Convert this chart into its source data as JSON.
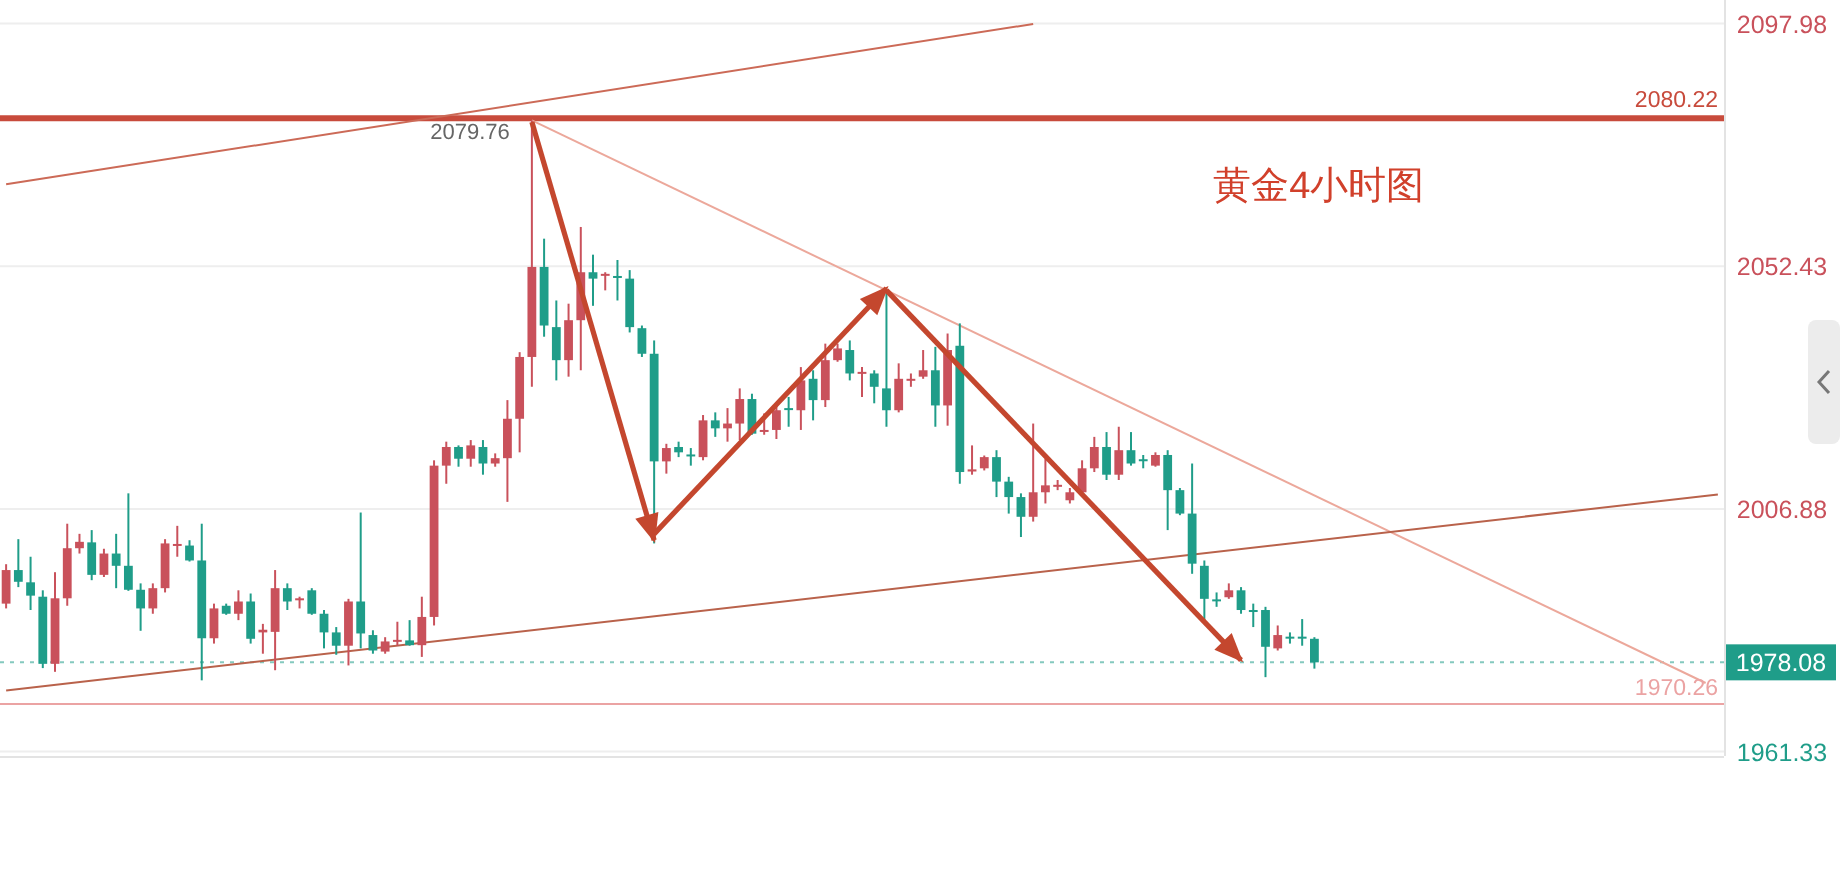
{
  "chart_data": {
    "type": "candlestick",
    "title": "黄金4小时图",
    "categories": [
      null,
      null,
      null,
      null,
      null,
      null,
      null,
      null,
      null,
      null,
      null,
      null,
      null,
      null,
      null,
      null,
      null,
      null,
      null,
      null,
      null,
      null,
      null,
      null,
      null,
      null,
      null,
      null,
      null,
      null,
      null,
      null,
      null,
      null,
      null,
      null,
      null,
      null,
      null,
      null,
      null,
      null,
      null,
      null,
      null,
      null,
      null,
      null,
      null,
      null,
      null,
      null,
      null,
      null,
      null,
      null,
      null,
      null,
      null,
      null,
      null,
      null,
      null,
      null,
      null,
      null,
      null,
      null,
      null,
      null,
      null,
      null,
      null,
      null,
      null,
      null,
      null,
      null,
      null,
      null,
      null,
      null,
      null,
      null,
      null,
      null,
      null,
      null,
      null,
      null,
      null,
      null,
      null,
      null,
      null,
      null,
      null,
      null,
      null,
      null,
      null,
      null,
      null,
      null,
      null,
      null,
      null,
      null,
      null,
      null,
      null,
      null,
      null,
      null,
      null,
      null,
      null,
      null,
      null,
      null,
      null,
      null,
      null,
      null,
      null,
      null,
      null,
      null,
      null,
      null,
      null,
      null,
      null,
      null,
      null,
      null,
      null,
      null,
      null,
      null,
      null
    ],
    "ohlc": [
      [
        1989.1,
        1996.5,
        1988.2,
        1995.4
      ],
      [
        1995.4,
        2001.2,
        1992.2,
        1993.2
      ],
      [
        1993.1,
        1997.9,
        1987.9,
        1990.6
      ],
      [
        1990.4,
        1991.6,
        1977.0,
        1977.8
      ],
      [
        1977.8,
        1995.0,
        1976.3,
        1990.1
      ],
      [
        1990.1,
        2004.1,
        1988.7,
        1999.5
      ],
      [
        1999.5,
        2002.2,
        1998.5,
        2000.7
      ],
      [
        2000.6,
        2002.9,
        1993.5,
        1994.5
      ],
      [
        1994.5,
        1999.4,
        1994.1,
        1998.5
      ],
      [
        1998.5,
        2002.2,
        1992.0,
        1996.2
      ],
      [
        1996.2,
        2009.8,
        1991.5,
        1991.7
      ],
      [
        1991.7,
        1992.9,
        1984.0,
        1988.2
      ],
      [
        1988.2,
        1992.9,
        1987.2,
        1992.0
      ],
      [
        1992.0,
        2001.2,
        1991.2,
        2000.4
      ],
      [
        2000.1,
        2003.7,
        1997.9,
        2000.3
      ],
      [
        2000.0,
        2001.0,
        1997.0,
        1997.2
      ],
      [
        1997.2,
        2004.1,
        1974.7,
        1982.6
      ],
      [
        1982.6,
        1989.1,
        1981.6,
        1988.2
      ],
      [
        1988.7,
        1989.1,
        1987.0,
        1987.2
      ],
      [
        1987.2,
        1991.6,
        1986.0,
        1989.5
      ],
      [
        1989.5,
        1991.0,
        1981.6,
        1982.5
      ],
      [
        1983.7,
        1985.3,
        1979.7,
        1984.2
      ],
      [
        1983.8,
        1995.4,
        1976.6,
        1992.0
      ],
      [
        1992.0,
        1992.9,
        1987.9,
        1989.5
      ],
      [
        1989.8,
        1990.4,
        1988.2,
        1990.1
      ],
      [
        1991.6,
        1992.0,
        1987.0,
        1987.2
      ],
      [
        1987.2,
        1987.9,
        1980.7,
        1983.7
      ],
      [
        1983.7,
        1984.7,
        1979.5,
        1981.2
      ],
      [
        1981.2,
        1990.0,
        1977.5,
        1989.5
      ],
      [
        1989.5,
        2006.2,
        1980.7,
        1983.5
      ],
      [
        1983.2,
        1984.1,
        1979.7,
        1980.3
      ],
      [
        1980.1,
        1982.8,
        1979.7,
        1982.0
      ],
      [
        1982.1,
        1985.7,
        1981.2,
        1982.3
      ],
      [
        1982.2,
        1986.0,
        1981.2,
        1981.3
      ],
      [
        1981.3,
        1990.4,
        1979.1,
        1986.6
      ],
      [
        1986.6,
        2016.0,
        1985.0,
        2015.0
      ],
      [
        2015.0,
        2019.5,
        2011.6,
        2018.5
      ],
      [
        2018.5,
        2018.8,
        2014.8,
        2016.3
      ],
      [
        2016.3,
        2019.8,
        2014.8,
        2018.8
      ],
      [
        2018.5,
        2019.8,
        2013.3,
        2015.4
      ],
      [
        2015.4,
        2017.3,
        2014.8,
        2016.4
      ],
      [
        2016.4,
        2027.3,
        2008.2,
        2023.8
      ],
      [
        2023.8,
        2036.3,
        2017.5,
        2035.4
      ],
      [
        2035.4,
        2079.76,
        2029.8,
        2052.3
      ],
      [
        2052.3,
        2057.6,
        2039.2,
        2041.3
      ],
      [
        2041.0,
        2046.0,
        2031.0,
        2034.8
      ],
      [
        2034.8,
        2045.4,
        2031.7,
        2042.3
      ],
      [
        2042.3,
        2059.8,
        2032.9,
        2051.3
      ],
      [
        2051.3,
        2054.6,
        2045.0,
        2050.1
      ],
      [
        2050.7,
        2051.3,
        2047.9,
        2051.0
      ],
      [
        2050.6,
        2053.6,
        2046.0,
        2050.4
      ],
      [
        2050.1,
        2051.7,
        2040.0,
        2041.0
      ],
      [
        2040.8,
        2041.3,
        2035.4,
        2036.0
      ],
      [
        2036.0,
        2038.5,
        2000.4,
        2015.8
      ],
      [
        2015.8,
        2019.1,
        2013.5,
        2018.3
      ],
      [
        2018.5,
        2019.5,
        2016.6,
        2017.5
      ],
      [
        2017.1,
        2018.3,
        2015.0,
        2016.8
      ],
      [
        2016.6,
        2024.5,
        2016.0,
        2023.5
      ],
      [
        2023.5,
        2025.0,
        2020.4,
        2022.0
      ],
      [
        2022.0,
        2025.8,
        2019.5,
        2022.9
      ],
      [
        2022.9,
        2029.5,
        2019.8,
        2027.5
      ],
      [
        2027.5,
        2028.5,
        2020.8,
        2021.0
      ],
      [
        2021.4,
        2024.8,
        2020.8,
        2021.7
      ],
      [
        2021.7,
        2026.3,
        2020.0,
        2025.4
      ],
      [
        2025.8,
        2027.9,
        2022.3,
        2025.6
      ],
      [
        2025.4,
        2033.5,
        2021.7,
        2031.0
      ],
      [
        2031.3,
        2032.9,
        2023.5,
        2027.3
      ],
      [
        2027.3,
        2037.9,
        2026.0,
        2034.8
      ],
      [
        2034.8,
        2037.9,
        2034.5,
        2037.0
      ],
      [
        2036.7,
        2038.5,
        2031.0,
        2032.3
      ],
      [
        2032.4,
        2033.5,
        2027.9,
        2032.6
      ],
      [
        2032.3,
        2032.9,
        2026.7,
        2029.8
      ],
      [
        2029.5,
        2047.9,
        2022.3,
        2025.4
      ],
      [
        2025.4,
        2034.2,
        2025.0,
        2031.3
      ],
      [
        2031.0,
        2032.3,
        2029.8,
        2031.3
      ],
      [
        2031.7,
        2036.7,
        2031.3,
        2032.9
      ],
      [
        2032.9,
        2037.3,
        2022.3,
        2026.3
      ],
      [
        2026.3,
        2039.8,
        2022.5,
        2036.7
      ],
      [
        2037.5,
        2041.7,
        2011.6,
        2013.8
      ],
      [
        2013.9,
        2018.8,
        2013.3,
        2014.3
      ],
      [
        2014.5,
        2016.9,
        2014.1,
        2016.6
      ],
      [
        2016.6,
        2017.9,
        2009.1,
        2012.0
      ],
      [
        2012.0,
        2012.9,
        2006.0,
        2009.1
      ],
      [
        2009.1,
        2009.8,
        2001.6,
        2005.4
      ],
      [
        2005.4,
        2022.9,
        2004.5,
        2010.0
      ],
      [
        2010.0,
        2016.3,
        2007.9,
        2011.3
      ],
      [
        2011.2,
        2012.3,
        2010.4,
        2011.4
      ],
      [
        2008.5,
        2010.8,
        2007.9,
        2010.0
      ],
      [
        2010.0,
        2016.0,
        2009.8,
        2014.5
      ],
      [
        2014.5,
        2020.4,
        2013.8,
        2018.5
      ],
      [
        2018.5,
        2021.3,
        2012.3,
        2013.3
      ],
      [
        2013.3,
        2022.3,
        2012.3,
        2017.9
      ],
      [
        2017.9,
        2021.3,
        2015.0,
        2015.4
      ],
      [
        2016.2,
        2017.0,
        2014.5,
        2016.0
      ],
      [
        2015.0,
        2017.5,
        2014.8,
        2017.0
      ],
      [
        2017.0,
        2017.9,
        2002.9,
        2010.4
      ],
      [
        2010.4,
        2010.8,
        2005.7,
        2006.0
      ],
      [
        2006.0,
        2015.4,
        1994.7,
        1996.6
      ],
      [
        1996.2,
        1997.2,
        1986.0,
        1990.0
      ],
      [
        1989.9,
        1991.2,
        1988.5,
        1989.7
      ],
      [
        1990.3,
        1992.9,
        1990.0,
        1991.6
      ],
      [
        1991.6,
        1992.2,
        1987.2,
        1987.9
      ],
      [
        1987.9,
        1989.1,
        1984.7,
        1987.6
      ],
      [
        1987.9,
        1988.5,
        1975.3,
        1981.0
      ],
      [
        1980.7,
        1985.0,
        1980.3,
        1983.2
      ],
      [
        1982.9,
        1983.7,
        1981.6,
        1982.7
      ],
      [
        1982.9,
        1986.2,
        1981.2,
        1982.6
      ],
      [
        1982.5,
        1982.8,
        1976.9,
        1978.08
      ],
      null,
      null,
      null,
      null,
      null,
      null,
      null,
      null,
      null,
      null,
      null,
      null,
      null,
      null,
      null,
      null,
      null,
      null,
      null,
      null,
      null,
      null,
      null,
      null,
      null,
      null,
      null,
      null,
      null,
      null,
      null,
      null,
      null
    ],
    "colors": [
      "#c9515b",
      "#1f9d89",
      "#1f9d89",
      "#1f9d89",
      "#c9515b",
      "#c9515b",
      "#c9515b",
      "#1f9d89",
      "#c9515b",
      "#1f9d89",
      "#1f9d89",
      "#1f9d89",
      "#c9515b",
      "#c9515b",
      "#c9515b",
      "#1f9d89",
      "#1f9d89",
      "#c9515b",
      "#1f9d89",
      "#c9515b",
      "#1f9d89",
      "#c9515b",
      "#c9515b",
      "#1f9d89",
      "#c9515b",
      "#1f9d89",
      "#1f9d89",
      "#1f9d89",
      "#c9515b",
      "#1f9d89",
      "#1f9d89",
      "#c9515b",
      "#c9515b",
      "#1f9d89",
      "#c9515b",
      "#c9515b",
      "#c9515b",
      "#1f9d89",
      "#c9515b",
      "#1f9d89",
      "#c9515b",
      "#c9515b",
      "#c9515b",
      "#c9515b",
      "#1f9d89",
      "#1f9d89",
      "#c9515b",
      "#c9515b",
      "#1f9d89",
      "#c9515b",
      "#1f9d89",
      "#1f9d89",
      "#1f9d89",
      "#1f9d89",
      "#c9515b",
      "#1f9d89",
      "#1f9d89",
      "#c9515b",
      "#1f9d89",
      "#c9515b",
      "#c9515b",
      "#1f9d89",
      "#c9515b",
      "#c9515b",
      "#1f9d89",
      "#c9515b",
      "#1f9d89",
      "#c9515b",
      "#c9515b",
      "#1f9d89",
      "#c9515b",
      "#1f9d89",
      "#1f9d89",
      "#c9515b",
      "#c9515b",
      "#c9515b",
      "#1f9d89",
      "#c9515b",
      "#1f9d89",
      "#c9515b",
      "#c9515b",
      "#1f9d89",
      "#1f9d89",
      "#1f9d89",
      "#c9515b",
      "#c9515b",
      "#c9515b",
      "#c9515b",
      "#c9515b",
      "#c9515b",
      "#1f9d89",
      "#c9515b",
      "#1f9d89",
      "#1f9d89",
      "#c9515b",
      "#1f9d89",
      "#1f9d89",
      "#1f9d89",
      "#1f9d89",
      "#1f9d89",
      "#c9515b",
      "#1f9d89",
      "#1f9d89",
      "#1f9d89",
      "#c9515b",
      "#1f9d89",
      "#1f9d89",
      "#1f9d89",
      null,
      null,
      null,
      null,
      null,
      null,
      null,
      null,
      null,
      null,
      null,
      null,
      null,
      null,
      null,
      null,
      null,
      null,
      null,
      null,
      null,
      null,
      null,
      null,
      null,
      null,
      null,
      null,
      null,
      null,
      null,
      null,
      null
    ],
    "ylim": [
      1960.5,
      2102.4
    ],
    "yticks": [
      1961.33,
      2006.88,
      2052.43,
      2097.98
    ],
    "tick_labels": "y",
    "grid": "y",
    "ref_lines": [
      {
        "axis": "y",
        "value": 2080.22,
        "label": "2080.22",
        "color": "#c84b3c"
      },
      {
        "axis": "y",
        "value": 1978.08,
        "label": "1978.08",
        "color": "#1f9d89",
        "line_style": "dotted"
      },
      {
        "axis": "y",
        "value": 1970.26,
        "label": "1970.26",
        "color": "#eba3a3"
      }
    ],
    "annotations": [
      {
        "text": "2079.76",
        "y": 2079.76
      }
    ],
    "series": [
      {
        "type": "line",
        "color": "#cc6a57",
        "values": [
          2067.8,
          null,
          null,
          null,
          null,
          null,
          null,
          null,
          null,
          null,
          null,
          null,
          null,
          null,
          null,
          null,
          null,
          null,
          null,
          null,
          null,
          null,
          null,
          null,
          null,
          null,
          null,
          null,
          null,
          null,
          null,
          null,
          null,
          null,
          null,
          null,
          null,
          null,
          null,
          null,
          null,
          null,
          null,
          null,
          null,
          null,
          null,
          null,
          null,
          null,
          null,
          null,
          null,
          null,
          null,
          null,
          null,
          null,
          null,
          null,
          null,
          null,
          null,
          null,
          null,
          null,
          null,
          null,
          null,
          null,
          null,
          null,
          null,
          null,
          null,
          null,
          null,
          null,
          null,
          null,
          null,
          null,
          null,
          null,
          2097.9,
          null,
          null,
          null,
          null,
          null,
          null,
          null,
          null,
          null,
          null,
          null,
          null,
          null,
          null,
          null,
          null,
          null,
          null,
          null,
          null,
          null,
          null,
          null,
          null,
          null,
          null,
          null,
          null,
          null,
          null,
          null,
          null,
          null,
          null,
          null,
          null,
          null,
          null,
          null,
          null,
          null,
          null,
          null,
          null,
          null,
          null,
          null,
          null,
          null,
          null,
          null,
          null,
          null,
          null,
          null,
          null
        ]
      },
      {
        "type": "line",
        "color": "#eca89b",
        "values": [
          null,
          null,
          null,
          null,
          null,
          null,
          null,
          null,
          null,
          null,
          null,
          null,
          null,
          null,
          null,
          null,
          null,
          null,
          null,
          null,
          null,
          null,
          null,
          null,
          null,
          null,
          null,
          null,
          null,
          null,
          null,
          null,
          null,
          null,
          null,
          null,
          null,
          null,
          null,
          null,
          null,
          null,
          null,
          2079.8,
          null,
          null,
          null,
          null,
          null,
          null,
          null,
          null,
          null,
          null,
          null,
          null,
          null,
          null,
          null,
          null,
          null,
          null,
          null,
          null,
          null,
          null,
          null,
          null,
          null,
          null,
          null,
          null,
          null,
          null,
          null,
          null,
          null,
          null,
          null,
          null,
          null,
          null,
          null,
          null,
          null,
          null,
          null,
          null,
          null,
          null,
          null,
          null,
          null,
          null,
          null,
          null,
          null,
          null,
          null,
          null,
          null,
          null,
          null,
          null,
          null,
          null,
          null,
          null,
          null,
          null,
          null,
          null,
          null,
          null,
          null,
          null,
          null,
          null,
          null,
          null,
          null,
          null,
          null,
          null,
          null,
          null,
          null,
          null,
          null,
          null,
          null,
          null,
          null,
          null,
          null,
          null,
          null,
          null,
          null,
          1974.2,
          null
        ]
      },
      {
        "type": "line",
        "color": "#b9624b",
        "values": [
          1972.8,
          null,
          null,
          null,
          null,
          null,
          null,
          null,
          null,
          null,
          null,
          null,
          null,
          null,
          null,
          null,
          null,
          null,
          null,
          null,
          null,
          null,
          null,
          null,
          null,
          null,
          null,
          null,
          null,
          null,
          null,
          null,
          null,
          null,
          null,
          null,
          null,
          null,
          null,
          null,
          null,
          null,
          null,
          null,
          null,
          null,
          null,
          null,
          null,
          null,
          null,
          null,
          null,
          null,
          null,
          null,
          null,
          null,
          null,
          null,
          null,
          null,
          null,
          null,
          null,
          null,
          null,
          null,
          null,
          null,
          null,
          null,
          null,
          null,
          null,
          null,
          null,
          null,
          null,
          null,
          null,
          null,
          null,
          null,
          null,
          null,
          null,
          null,
          null,
          null,
          null,
          null,
          null,
          null,
          null,
          null,
          null,
          null,
          null,
          null,
          null,
          null,
          null,
          null,
          null,
          null,
          null,
          null,
          null,
          null,
          null,
          null,
          null,
          null,
          null,
          null,
          null,
          null,
          null,
          null,
          null,
          null,
          null,
          null,
          null,
          null,
          null,
          null,
          null,
          null,
          null,
          null,
          null,
          null,
          null,
          null,
          null,
          null,
          null,
          null,
          2009.6
        ]
      },
      {
        "type": "line",
        "color": "#c4472e",
        "values": [
          null,
          null,
          null,
          null,
          null,
          null,
          null,
          null,
          null,
          null,
          null,
          null,
          null,
          null,
          null,
          null,
          null,
          null,
          null,
          null,
          null,
          null,
          null,
          null,
          null,
          null,
          null,
          null,
          null,
          null,
          null,
          null,
          null,
          null,
          null,
          null,
          null,
          null,
          null,
          null,
          null,
          null,
          null,
          2079.5,
          null,
          null,
          null,
          null,
          null,
          null,
          null,
          null,
          null,
          2001.0,
          null,
          null,
          null,
          null,
          null,
          null,
          null,
          null,
          null,
          null,
          null,
          null,
          null,
          null,
          null,
          null,
          null,
          null,
          null,
          null,
          null,
          null,
          null,
          null,
          null,
          null,
          null,
          null,
          null,
          null,
          null,
          null,
          null,
          null,
          null,
          null,
          null,
          null,
          null,
          null,
          null,
          null,
          null,
          null,
          null,
          null,
          null,
          null,
          null,
          null,
          null,
          null,
          null,
          null,
          null,
          null,
          null,
          null,
          null,
          null,
          null,
          null,
          null,
          null,
          null,
          null,
          null,
          null,
          null,
          null,
          null,
          null,
          null,
          null,
          null,
          null,
          null,
          null,
          null,
          null,
          null,
          null,
          null,
          null,
          null,
          null,
          null
        ]
      },
      {
        "type": "line",
        "color": "#c4472e",
        "values": [
          null,
          null,
          null,
          null,
          null,
          null,
          null,
          null,
          null,
          null,
          null,
          null,
          null,
          null,
          null,
          null,
          null,
          null,
          null,
          null,
          null,
          null,
          null,
          null,
          null,
          null,
          null,
          null,
          null,
          null,
          null,
          null,
          null,
          null,
          null,
          null,
          null,
          null,
          null,
          null,
          null,
          null,
          null,
          null,
          null,
          null,
          null,
          null,
          null,
          null,
          null,
          null,
          null,
          2002.2,
          null,
          null,
          null,
          null,
          null,
          null,
          null,
          null,
          null,
          null,
          null,
          null,
          null,
          null,
          null,
          null,
          null,
          null,
          2048.3,
          null,
          null,
          null,
          null,
          null,
          null,
          null,
          null,
          null,
          null,
          null,
          null,
          null,
          null,
          null,
          null,
          null,
          null,
          null,
          null,
          null,
          null,
          null,
          null,
          null,
          null,
          null,
          null,
          null,
          null,
          null,
          null,
          null,
          null,
          null,
          null,
          null,
          null,
          null,
          null,
          null,
          null,
          null,
          null,
          null,
          null,
          null,
          null,
          null,
          null,
          null,
          null,
          null,
          null,
          null,
          null,
          null,
          null,
          null,
          null,
          null,
          null,
          null,
          null,
          null,
          null,
          null,
          null
        ]
      },
      {
        "type": "line",
        "color": "#c4472e",
        "values": [
          null,
          null,
          null,
          null,
          null,
          null,
          null,
          null,
          null,
          null,
          null,
          null,
          null,
          null,
          null,
          null,
          null,
          null,
          null,
          null,
          null,
          null,
          null,
          null,
          null,
          null,
          null,
          null,
          null,
          null,
          null,
          null,
          null,
          null,
          null,
          null,
          null,
          null,
          null,
          null,
          null,
          null,
          null,
          null,
          null,
          null,
          null,
          null,
          null,
          null,
          null,
          null,
          null,
          null,
          null,
          null,
          null,
          null,
          null,
          null,
          null,
          null,
          null,
          null,
          null,
          null,
          null,
          null,
          null,
          null,
          null,
          null,
          2047.9,
          null,
          null,
          null,
          null,
          null,
          null,
          null,
          null,
          null,
          null,
          null,
          null,
          null,
          null,
          null,
          null,
          null,
          null,
          null,
          null,
          null,
          null,
          null,
          null,
          null,
          null,
          null,
          null,
          1978.5,
          null,
          null,
          null,
          null,
          null,
          null,
          null,
          null,
          null,
          null,
          null,
          null,
          null,
          null,
          null,
          null,
          null,
          null,
          null,
          null,
          null,
          null,
          null,
          null,
          null,
          null,
          null,
          null,
          null,
          null,
          null,
          null,
          null,
          null,
          null,
          null,
          null,
          null,
          null
        ]
      }
    ]
  }
}
